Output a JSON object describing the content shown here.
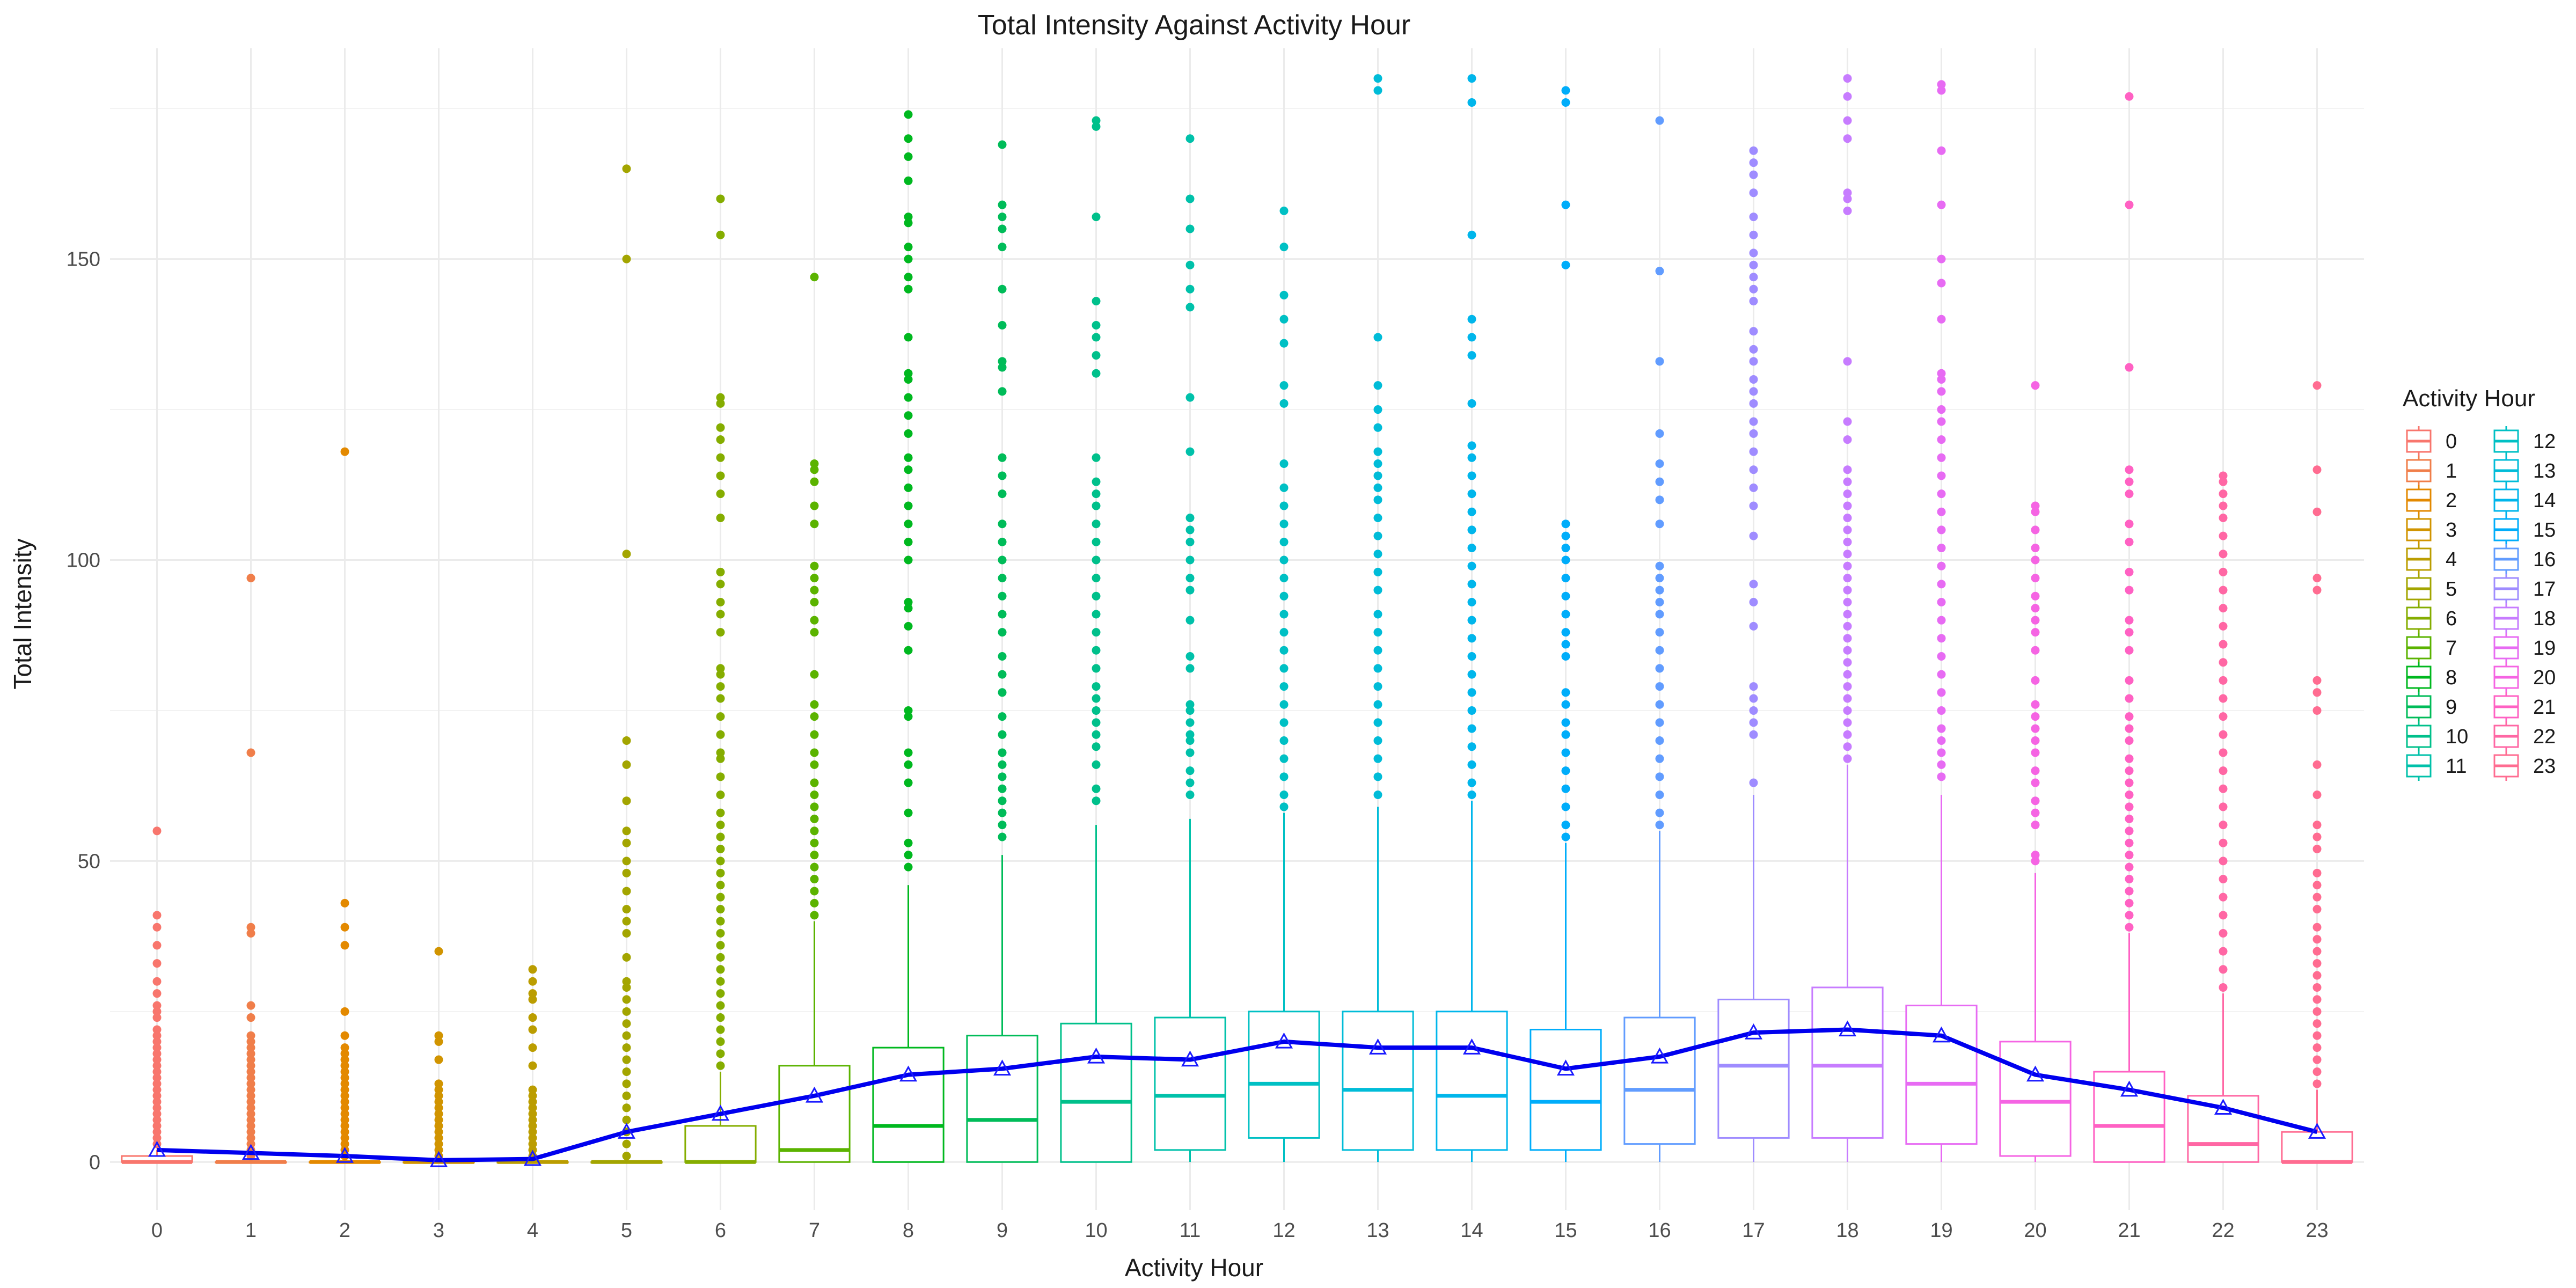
{
  "chart_data": {
    "type": "box",
    "title": "Total Intensity Against Activity Hour",
    "xlabel": "Activity Hour",
    "ylabel": "Total Intensity",
    "legend_title": "Activity Hour",
    "legend_position": "right",
    "ylim": [
      -8,
      185
    ],
    "y_ticks": [
      0,
      50,
      100,
      150
    ],
    "grid": true,
    "mean_line_color": "#0000ee",
    "categories": [
      "0",
      "1",
      "2",
      "3",
      "4",
      "5",
      "6",
      "7",
      "8",
      "9",
      "10",
      "11",
      "12",
      "13",
      "14",
      "15",
      "16",
      "17",
      "18",
      "19",
      "20",
      "21",
      "22",
      "23"
    ],
    "colors": [
      "#F8766D",
      "#F07E4A",
      "#E38900",
      "#D19400",
      "#BB9D00",
      "#A3A500",
      "#85AD00",
      "#5BB300",
      "#00B81F",
      "#00BC59",
      "#00C08B",
      "#00C1AA",
      "#00C0C4",
      "#00BCD8",
      "#00B6EB",
      "#00ADFA",
      "#619CFF",
      "#9F8CFF",
      "#C77CFF",
      "#E76BF3",
      "#F564E3",
      "#FF61C3",
      "#FF67A4",
      "#FF6C91"
    ],
    "boxes": [
      {
        "q1": 0,
        "median": 0,
        "q3": 1,
        "whisker_low": 0,
        "whisker_high": 2,
        "mean": 2,
        "outliers": [
          55,
          41,
          39,
          36,
          33,
          30,
          28,
          26,
          25,
          24,
          22,
          21,
          20,
          19,
          18,
          17,
          16,
          15,
          14,
          13,
          12,
          11,
          10,
          9,
          8,
          7,
          6,
          5,
          4,
          3
        ]
      },
      {
        "q1": 0,
        "median": 0,
        "q3": 0,
        "whisker_low": 0,
        "whisker_high": 0,
        "mean": 1.5,
        "outliers": [
          97,
          68,
          39,
          38,
          26,
          24,
          21,
          20,
          19,
          18,
          17,
          16,
          15,
          14,
          13,
          12,
          11,
          10,
          9,
          8,
          7,
          6,
          5,
          4,
          3,
          2,
          1
        ]
      },
      {
        "q1": 0,
        "median": 0,
        "q3": 0,
        "whisker_low": 0,
        "whisker_high": 0,
        "mean": 1,
        "outliers": [
          118,
          43,
          39,
          36,
          25,
          21,
          19,
          18,
          17,
          16,
          15,
          14,
          13,
          12,
          11,
          10,
          9,
          8,
          7,
          6,
          5,
          4,
          3,
          2,
          1
        ]
      },
      {
        "q1": 0,
        "median": 0,
        "q3": 0,
        "whisker_low": 0,
        "whisker_high": 0,
        "mean": 0.3,
        "outliers": [
          35,
          21,
          20,
          17,
          13,
          12,
          11,
          10,
          9,
          8,
          7,
          6,
          5,
          4,
          3,
          2,
          1
        ]
      },
      {
        "q1": 0,
        "median": 0,
        "q3": 0,
        "whisker_low": 0,
        "whisker_high": 0,
        "mean": 0.5,
        "outliers": [
          32,
          30,
          28,
          27,
          24,
          22,
          19,
          16,
          12,
          11,
          10,
          9,
          8,
          7,
          6,
          5,
          4,
          3,
          2,
          1
        ]
      },
      {
        "q1": 0,
        "median": 0,
        "q3": 0,
        "whisker_low": 0,
        "whisker_high": 0,
        "mean": 5,
        "outliers": [
          165,
          150,
          101,
          70,
          66,
          60,
          55,
          53,
          50,
          48,
          45,
          42,
          40,
          38,
          34,
          30,
          29,
          27,
          25,
          23,
          21,
          19,
          17,
          15,
          13,
          11,
          9,
          7,
          5,
          3,
          1
        ]
      },
      {
        "q1": 0,
        "median": 0,
        "q3": 6,
        "whisker_low": 0,
        "whisker_high": 15,
        "mean": 8,
        "outliers": [
          160,
          154,
          127,
          126,
          122,
          120,
          117,
          114,
          111,
          107,
          98,
          96,
          93,
          91,
          88,
          82,
          81,
          79,
          77,
          74,
          71,
          68,
          67,
          64,
          61,
          58,
          56,
          54,
          52,
          50,
          48,
          46,
          44,
          42,
          40,
          38,
          36,
          34,
          32,
          30,
          28,
          26,
          24,
          22,
          20,
          18,
          16
        ]
      },
      {
        "q1": 0,
        "median": 2,
        "q3": 16,
        "whisker_low": 0,
        "whisker_high": 40,
        "mean": 11,
        "outliers": [
          147,
          116,
          115,
          113,
          109,
          106,
          99,
          97,
          95,
          93,
          90,
          88,
          81,
          76,
          74,
          71,
          68,
          66,
          63,
          61,
          59,
          57,
          55,
          53,
          51,
          49,
          47,
          45,
          43,
          41
        ]
      },
      {
        "q1": 0,
        "median": 6,
        "q3": 19,
        "whisker_low": 0,
        "whisker_high": 46,
        "mean": 14.5,
        "outliers": [
          174,
          170,
          167,
          163,
          157,
          156,
          152,
          150,
          147,
          145,
          137,
          131,
          130,
          127,
          124,
          121,
          117,
          115,
          112,
          109,
          106,
          103,
          100,
          93,
          92,
          89,
          85,
          75,
          74,
          68,
          66,
          63,
          58,
          53,
          51,
          49
        ]
      },
      {
        "q1": 0,
        "median": 7,
        "q3": 21,
        "whisker_low": 0,
        "whisker_high": 51,
        "mean": 15.5,
        "outliers": [
          169,
          159,
          157,
          155,
          152,
          145,
          139,
          133,
          132,
          128,
          117,
          114,
          111,
          106,
          103,
          100,
          97,
          94,
          91,
          88,
          84,
          81,
          78,
          74,
          71,
          68,
          66,
          64,
          62,
          60,
          58,
          56,
          54
        ]
      },
      {
        "q1": 0,
        "median": 10,
        "q3": 23,
        "whisker_low": 0,
        "whisker_high": 56,
        "mean": 17.5,
        "outliers": [
          173,
          172,
          157,
          143,
          139,
          137,
          134,
          131,
          117,
          113,
          111,
          109,
          106,
          103,
          100,
          97,
          94,
          91,
          88,
          85,
          82,
          79,
          77,
          75,
          73,
          71,
          69,
          66,
          62,
          60
        ]
      },
      {
        "q1": 2,
        "median": 11,
        "q3": 24,
        "whisker_low": 0,
        "whisker_high": 57,
        "mean": 17,
        "outliers": [
          170,
          160,
          155,
          149,
          145,
          142,
          127,
          118,
          107,
          105,
          103,
          100,
          97,
          95,
          90,
          84,
          82,
          76,
          75,
          73,
          71,
          70,
          68,
          65,
          63,
          61
        ]
      },
      {
        "q1": 4,
        "median": 13,
        "q3": 25,
        "whisker_low": 0,
        "whisker_high": 58,
        "mean": 20,
        "outliers": [
          158,
          152,
          144,
          140,
          136,
          129,
          126,
          116,
          112,
          109,
          106,
          103,
          100,
          97,
          94,
          91,
          88,
          85,
          82,
          79,
          76,
          73,
          70,
          67,
          64,
          61,
          59
        ]
      },
      {
        "q1": 2,
        "median": 12,
        "q3": 25,
        "whisker_low": 0,
        "whisker_high": 59,
        "mean": 19,
        "outliers": [
          180,
          178,
          137,
          129,
          125,
          122,
          118,
          116,
          114,
          112,
          110,
          107,
          104,
          101,
          98,
          95,
          91,
          88,
          85,
          82,
          79,
          76,
          73,
          70,
          67,
          64,
          61
        ]
      },
      {
        "q1": 2,
        "median": 11,
        "q3": 25,
        "whisker_low": 0,
        "whisker_high": 60,
        "mean": 19,
        "outliers": [
          180,
          176,
          154,
          140,
          137,
          134,
          126,
          119,
          117,
          114,
          111,
          108,
          105,
          102,
          99,
          96,
          93,
          90,
          87,
          84,
          81,
          78,
          75,
          72,
          69,
          66,
          63,
          61
        ]
      },
      {
        "q1": 2,
        "median": 10,
        "q3": 22,
        "whisker_low": 0,
        "whisker_high": 53,
        "mean": 15.5,
        "outliers": [
          178,
          176,
          159,
          149,
          106,
          104,
          102,
          100,
          97,
          94,
          91,
          88,
          86,
          84,
          78,
          76,
          73,
          71,
          68,
          65,
          62,
          59,
          56,
          54
        ]
      },
      {
        "q1": 3,
        "median": 12,
        "q3": 24,
        "whisker_low": 0,
        "whisker_high": 55,
        "mean": 17.5,
        "outliers": [
          173,
          148,
          133,
          121,
          116,
          113,
          110,
          106,
          99,
          97,
          95,
          93,
          91,
          88,
          85,
          82,
          79,
          76,
          73,
          70,
          67,
          64,
          61,
          58,
          56
        ]
      },
      {
        "q1": 4,
        "median": 16,
        "q3": 27,
        "whisker_low": 0,
        "whisker_high": 61,
        "mean": 21.5,
        "outliers": [
          168,
          166,
          164,
          161,
          157,
          154,
          151,
          149,
          147,
          145,
          143,
          138,
          135,
          133,
          130,
          128,
          126,
          123,
          121,
          118,
          115,
          112,
          109,
          104,
          96,
          93,
          89,
          79,
          77,
          75,
          73,
          71,
          63
        ]
      },
      {
        "q1": 4,
        "median": 16,
        "q3": 29,
        "whisker_low": 0,
        "whisker_high": 66,
        "mean": 22,
        "outliers": [
          180,
          177,
          173,
          170,
          161,
          160,
          158,
          133,
          123,
          120,
          115,
          113,
          111,
          109,
          107,
          105,
          103,
          101,
          99,
          97,
          95,
          93,
          91,
          89,
          87,
          85,
          83,
          81,
          79,
          77,
          75,
          73,
          71,
          69,
          67
        ]
      },
      {
        "q1": 3,
        "median": 13,
        "q3": 26,
        "whisker_low": 0,
        "whisker_high": 61,
        "mean": 21,
        "outliers": [
          179,
          178,
          168,
          159,
          150,
          146,
          140,
          131,
          130,
          128,
          125,
          123,
          120,
          117,
          114,
          111,
          108,
          105,
          102,
          99,
          96,
          93,
          90,
          87,
          84,
          81,
          78,
          75,
          72,
          70,
          68,
          66,
          64
        ]
      },
      {
        "q1": 1,
        "median": 10,
        "q3": 20,
        "whisker_low": 0,
        "whisker_high": 48,
        "mean": 14.5,
        "outliers": [
          129,
          109,
          108,
          105,
          102,
          100,
          97,
          94,
          92,
          90,
          88,
          85,
          80,
          76,
          74,
          72,
          70,
          68,
          65,
          63,
          60,
          58,
          56,
          51,
          50
        ]
      },
      {
        "q1": 0,
        "median": 6,
        "q3": 15,
        "whisker_low": 0,
        "whisker_high": 38,
        "mean": 12,
        "outliers": [
          177,
          159,
          132,
          115,
          113,
          111,
          106,
          103,
          98,
          95,
          90,
          88,
          85,
          80,
          77,
          74,
          72,
          70,
          67,
          65,
          63,
          61,
          59,
          57,
          55,
          53,
          51,
          49,
          47,
          45,
          43,
          41,
          39
        ]
      },
      {
        "q1": 0,
        "median": 3,
        "q3": 11,
        "whisker_low": 0,
        "whisker_high": 28,
        "mean": 9,
        "outliers": [
          114,
          113,
          111,
          109,
          107,
          104,
          101,
          98,
          95,
          92,
          89,
          86,
          83,
          80,
          77,
          74,
          71,
          68,
          65,
          62,
          59,
          56,
          53,
          50,
          47,
          44,
          41,
          38,
          35,
          32,
          29
        ]
      },
      {
        "q1": 0,
        "median": 0,
        "q3": 5,
        "whisker_low": 0,
        "whisker_high": 12,
        "mean": 5,
        "outliers": [
          129,
          115,
          108,
          97,
          95,
          80,
          78,
          75,
          66,
          61,
          56,
          54,
          52,
          48,
          46,
          44,
          42,
          39,
          37,
          35,
          33,
          31,
          29,
          27,
          25,
          23,
          21,
          19,
          17,
          15,
          13
        ]
      }
    ]
  }
}
